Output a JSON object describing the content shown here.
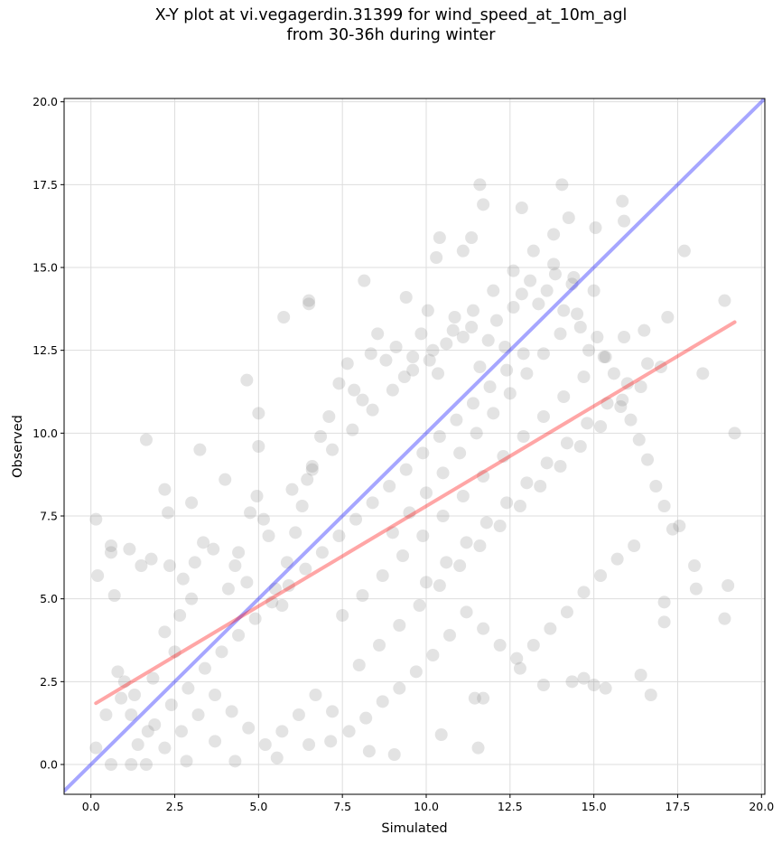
{
  "chart_data": {
    "type": "scatter",
    "title_line1": "X-Y plot at vi.vegagerdin.31399 for wind_speed_at_10m_agl",
    "title_line2": "from 30-36h during winter",
    "xlabel": "Simulated",
    "ylabel": "Observed",
    "xlim": [
      -0.8,
      20.1
    ],
    "ylim": [
      -0.9,
      20.1
    ],
    "xticks": [
      "0.0",
      "2.5",
      "5.0",
      "7.5",
      "10.0",
      "12.5",
      "15.0",
      "17.5",
      "20.0"
    ],
    "yticks": [
      "0.0",
      "2.5",
      "5.0",
      "7.5",
      "10.0",
      "12.5",
      "15.0",
      "17.5",
      "20.0"
    ],
    "grid": true,
    "colors": {
      "points": "#808080",
      "identity_line": "#0000ff",
      "fit_line": "#ff0000"
    },
    "lines": [
      {
        "role": "identity (1:1)",
        "x": [
          -0.8,
          20.1
        ],
        "y": [
          -0.8,
          20.1
        ]
      },
      {
        "role": "linear fit",
        "x": [
          0.15,
          19.2
        ],
        "y": [
          1.85,
          13.35
        ]
      }
    ],
    "series": [
      {
        "points": [
          [
            0.15,
            7.4
          ],
          [
            0.2,
            5.7
          ],
          [
            0.6,
            6.6
          ],
          [
            0.6,
            6.4
          ],
          [
            0.7,
            5.1
          ],
          [
            1.15,
            6.5
          ],
          [
            1.5,
            6.0
          ],
          [
            1.65,
            9.8
          ],
          [
            1.8,
            6.2
          ],
          [
            2.2,
            8.3
          ],
          [
            2.3,
            7.6
          ],
          [
            2.35,
            6.0
          ],
          [
            3.0,
            7.9
          ],
          [
            3.25,
            9.5
          ],
          [
            4.0,
            8.6
          ],
          [
            4.95,
            8.1
          ],
          [
            5.0,
            9.6
          ],
          [
            5.0,
            10.6
          ],
          [
            4.65,
            11.6
          ],
          [
            5.75,
            13.5
          ],
          [
            6.5,
            13.9
          ],
          [
            6.5,
            14.0
          ],
          [
            8.15,
            14.6
          ],
          [
            9.4,
            14.1
          ],
          [
            10.05,
            13.7
          ],
          [
            10.3,
            15.3
          ],
          [
            10.4,
            15.9
          ],
          [
            11.1,
            15.5
          ],
          [
            11.35,
            15.9
          ],
          [
            11.6,
            17.5
          ],
          [
            11.7,
            16.9
          ],
          [
            12.85,
            16.8
          ],
          [
            14.05,
            17.5
          ],
          [
            14.25,
            16.5
          ],
          [
            13.8,
            16.0
          ],
          [
            15.05,
            16.2
          ],
          [
            15.85,
            17.0
          ],
          [
            15.9,
            16.4
          ],
          [
            17.7,
            15.5
          ],
          [
            17.2,
            13.5
          ],
          [
            18.25,
            11.8
          ],
          [
            18.9,
            14.0
          ],
          [
            19.2,
            10.0
          ],
          [
            18.0,
            6.0
          ],
          [
            18.05,
            5.3
          ],
          [
            19.0,
            5.4
          ],
          [
            18.9,
            4.4
          ],
          [
            17.55,
            7.2
          ],
          [
            17.1,
            4.9
          ],
          [
            17.1,
            4.3
          ],
          [
            16.7,
            2.1
          ],
          [
            16.4,
            2.7
          ],
          [
            15.35,
            2.3
          ],
          [
            14.7,
            2.6
          ],
          [
            15.0,
            2.4
          ],
          [
            14.35,
            2.5
          ],
          [
            13.5,
            2.4
          ],
          [
            12.8,
            2.9
          ],
          [
            11.7,
            2.0
          ],
          [
            11.45,
            2.0
          ],
          [
            11.55,
            0.5
          ],
          [
            10.45,
            0.9
          ],
          [
            9.05,
            0.3
          ],
          [
            8.3,
            0.4
          ],
          [
            7.15,
            0.7
          ],
          [
            6.5,
            0.6
          ],
          [
            5.55,
            0.2
          ],
          [
            4.3,
            0.1
          ],
          [
            3.7,
            0.7
          ],
          [
            2.85,
            0.1
          ],
          [
            1.65,
            0.0
          ],
          [
            1.2,
            0.0
          ],
          [
            0.6,
            0.0
          ],
          [
            0.15,
            0.5
          ],
          [
            0.45,
            1.5
          ],
          [
            0.8,
            2.8
          ],
          [
            1.0,
            2.5
          ],
          [
            1.3,
            2.1
          ],
          [
            1.85,
            2.6
          ],
          [
            2.2,
            4.0
          ],
          [
            2.5,
            3.4
          ],
          [
            2.65,
            4.5
          ],
          [
            3.0,
            5.0
          ],
          [
            2.75,
            5.6
          ],
          [
            3.1,
            6.1
          ],
          [
            3.35,
            6.7
          ],
          [
            3.65,
            6.5
          ],
          [
            4.1,
            5.3
          ],
          [
            4.3,
            6.0
          ],
          [
            4.4,
            6.4
          ],
          [
            4.65,
            5.5
          ],
          [
            4.75,
            7.6
          ],
          [
            5.15,
            7.4
          ],
          [
            5.3,
            6.9
          ],
          [
            5.5,
            5.3
          ],
          [
            5.7,
            4.8
          ],
          [
            5.85,
            6.1
          ],
          [
            6.1,
            7.0
          ],
          [
            6.3,
            7.8
          ],
          [
            6.45,
            8.6
          ],
          [
            6.6,
            9.0
          ],
          [
            6.85,
            9.9
          ],
          [
            7.1,
            10.5
          ],
          [
            7.4,
            11.5
          ],
          [
            7.65,
            12.1
          ],
          [
            7.85,
            11.3
          ],
          [
            8.1,
            11.0
          ],
          [
            8.35,
            12.4
          ],
          [
            8.55,
            13.0
          ],
          [
            8.8,
            12.2
          ],
          [
            9.1,
            12.6
          ],
          [
            9.35,
            11.7
          ],
          [
            9.6,
            12.3
          ],
          [
            9.85,
            13.0
          ],
          [
            10.1,
            12.2
          ],
          [
            10.35,
            11.8
          ],
          [
            10.6,
            12.7
          ],
          [
            10.85,
            13.5
          ],
          [
            11.1,
            12.9
          ],
          [
            11.35,
            13.2
          ],
          [
            11.6,
            12.0
          ],
          [
            11.85,
            12.8
          ],
          [
            12.1,
            13.4
          ],
          [
            12.35,
            12.6
          ],
          [
            12.6,
            13.8
          ],
          [
            12.85,
            14.2
          ],
          [
            13.1,
            14.6
          ],
          [
            13.35,
            13.9
          ],
          [
            13.6,
            14.3
          ],
          [
            13.85,
            14.8
          ],
          [
            14.1,
            13.7
          ],
          [
            14.35,
            14.5
          ],
          [
            14.6,
            13.2
          ],
          [
            14.85,
            12.5
          ],
          [
            15.1,
            12.9
          ],
          [
            15.35,
            12.3
          ],
          [
            15.6,
            11.8
          ],
          [
            15.85,
            11.0
          ],
          [
            16.1,
            10.4
          ],
          [
            16.35,
            9.8
          ],
          [
            16.6,
            9.2
          ],
          [
            16.85,
            8.4
          ],
          [
            17.1,
            7.8
          ],
          [
            17.35,
            7.1
          ],
          [
            16.2,
            6.6
          ],
          [
            15.7,
            6.2
          ],
          [
            15.2,
            5.7
          ],
          [
            14.7,
            5.2
          ],
          [
            14.2,
            4.6
          ],
          [
            13.7,
            4.1
          ],
          [
            13.2,
            3.6
          ],
          [
            12.7,
            3.2
          ],
          [
            12.2,
            3.6
          ],
          [
            11.7,
            4.1
          ],
          [
            11.2,
            4.6
          ],
          [
            10.7,
            3.9
          ],
          [
            10.2,
            3.3
          ],
          [
            9.7,
            2.8
          ],
          [
            9.2,
            2.3
          ],
          [
            8.7,
            1.9
          ],
          [
            8.2,
            1.4
          ],
          [
            7.7,
            1.0
          ],
          [
            7.2,
            1.6
          ],
          [
            6.7,
            2.1
          ],
          [
            6.2,
            1.5
          ],
          [
            5.7,
            1.0
          ],
          [
            5.2,
            0.6
          ],
          [
            4.7,
            1.1
          ],
          [
            4.2,
            1.6
          ],
          [
            3.7,
            2.1
          ],
          [
            3.2,
            1.5
          ],
          [
            2.7,
            1.0
          ],
          [
            2.2,
            0.5
          ],
          [
            1.7,
            1.0
          ],
          [
            1.2,
            1.5
          ],
          [
            0.9,
            2.0
          ],
          [
            1.4,
            0.6
          ],
          [
            1.9,
            1.2
          ],
          [
            2.4,
            1.8
          ],
          [
            2.9,
            2.3
          ],
          [
            3.4,
            2.9
          ],
          [
            3.9,
            3.4
          ],
          [
            4.4,
            3.9
          ],
          [
            4.9,
            4.4
          ],
          [
            5.4,
            4.9
          ],
          [
            5.9,
            5.4
          ],
          [
            6.4,
            5.9
          ],
          [
            6.9,
            6.4
          ],
          [
            7.4,
            6.9
          ],
          [
            7.9,
            7.4
          ],
          [
            8.4,
            7.9
          ],
          [
            8.9,
            8.4
          ],
          [
            9.4,
            8.9
          ],
          [
            9.9,
            9.4
          ],
          [
            10.4,
            9.9
          ],
          [
            10.9,
            10.4
          ],
          [
            11.4,
            10.9
          ],
          [
            11.9,
            11.4
          ],
          [
            12.4,
            11.9
          ],
          [
            12.9,
            12.4
          ],
          [
            6.0,
            8.3
          ],
          [
            6.6,
            8.9
          ],
          [
            7.2,
            9.5
          ],
          [
            7.8,
            10.1
          ],
          [
            8.4,
            10.7
          ],
          [
            9.0,
            11.3
          ],
          [
            9.6,
            11.9
          ],
          [
            10.2,
            12.5
          ],
          [
            10.8,
            13.1
          ],
          [
            11.4,
            13.7
          ],
          [
            12.0,
            14.3
          ],
          [
            12.6,
            14.9
          ],
          [
            13.2,
            15.5
          ],
          [
            13.8,
            15.1
          ],
          [
            14.4,
            14.7
          ],
          [
            15.0,
            14.3
          ],
          [
            7.5,
            4.5
          ],
          [
            8.1,
            5.1
          ],
          [
            8.7,
            5.7
          ],
          [
            9.3,
            6.3
          ],
          [
            9.9,
            6.9
          ],
          [
            10.5,
            7.5
          ],
          [
            11.1,
            8.1
          ],
          [
            11.7,
            8.7
          ],
          [
            12.3,
            9.3
          ],
          [
            12.9,
            9.9
          ],
          [
            13.5,
            10.5
          ],
          [
            14.1,
            11.1
          ],
          [
            14.7,
            11.7
          ],
          [
            15.3,
            12.3
          ],
          [
            15.9,
            12.9
          ],
          [
            16.5,
            13.1
          ],
          [
            8.0,
            3.0
          ],
          [
            8.6,
            3.6
          ],
          [
            9.2,
            4.2
          ],
          [
            9.8,
            4.8
          ],
          [
            10.4,
            5.4
          ],
          [
            11.0,
            6.0
          ],
          [
            11.6,
            6.6
          ],
          [
            12.2,
            7.2
          ],
          [
            12.8,
            7.8
          ],
          [
            13.4,
            8.4
          ],
          [
            14.0,
            9.0
          ],
          [
            14.6,
            9.6
          ],
          [
            15.2,
            10.2
          ],
          [
            15.8,
            10.8
          ],
          [
            16.4,
            11.4
          ],
          [
            17.0,
            12.0
          ],
          [
            9.0,
            7.0
          ],
          [
            9.5,
            7.6
          ],
          [
            10.0,
            8.2
          ],
          [
            10.5,
            8.8
          ],
          [
            11.0,
            9.4
          ],
          [
            11.5,
            10.0
          ],
          [
            12.0,
            10.6
          ],
          [
            12.5,
            11.2
          ],
          [
            13.0,
            11.8
          ],
          [
            13.5,
            12.4
          ],
          [
            14.0,
            13.0
          ],
          [
            14.5,
            13.6
          ],
          [
            10.0,
            5.5
          ],
          [
            10.6,
            6.1
          ],
          [
            11.2,
            6.7
          ],
          [
            11.8,
            7.3
          ],
          [
            12.4,
            7.9
          ],
          [
            13.0,
            8.5
          ],
          [
            13.6,
            9.1
          ],
          [
            14.2,
            9.7
          ],
          [
            14.8,
            10.3
          ],
          [
            15.4,
            10.9
          ],
          [
            16.0,
            11.5
          ],
          [
            16.6,
            12.1
          ]
        ]
      }
    ]
  }
}
